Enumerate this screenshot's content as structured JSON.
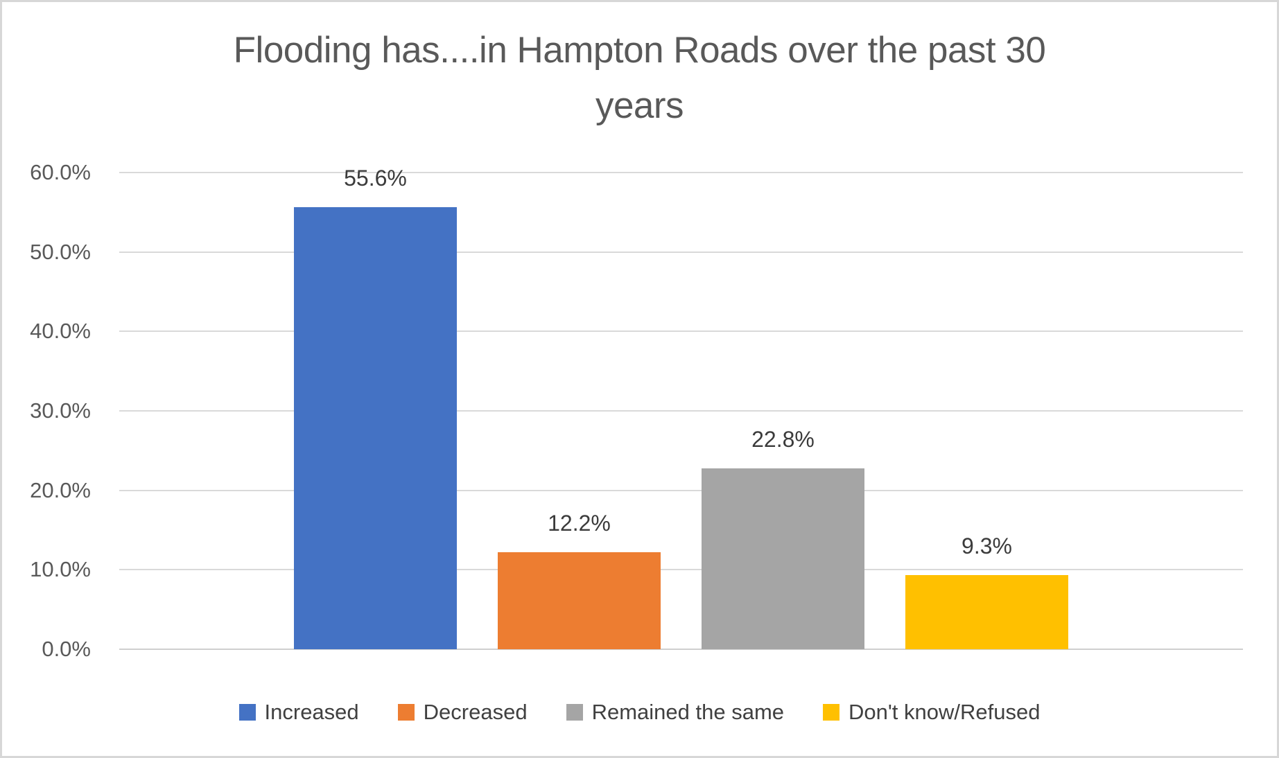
{
  "chart_data": {
    "type": "bar",
    "title": "Flooding has....in Hampton Roads over the past 30 years",
    "title_lines": [
      "Flooding has....in Hampton Roads over the past 30",
      "years"
    ],
    "categories": [
      "Increased",
      "Decreased",
      "Remained the same",
      "Don't know/Refused"
    ],
    "values": [
      55.6,
      12.2,
      22.8,
      9.3
    ],
    "data_labels": [
      "55.6%",
      "12.2%",
      "22.8%",
      "9.3%"
    ],
    "series_colors": [
      "#4472C4",
      "#ED7D31",
      "#A5A5A5",
      "#FFC000"
    ],
    "xlabel": "",
    "ylabel": "",
    "y_axis": {
      "min": 0,
      "max": 60,
      "step": 10,
      "tick_labels": [
        "0.0%",
        "10.0%",
        "20.0%",
        "30.0%",
        "40.0%",
        "50.0%",
        "60.0%"
      ]
    },
    "grid": true,
    "legend_position": "bottom",
    "colors": {
      "title_text": "#595959",
      "tick_text": "#595959",
      "data_label_text": "#3b3b3b",
      "legend_text": "#404040",
      "gridline": "#d9d9d9",
      "frame_border": "#d7d7d7",
      "background": "#ffffff"
    }
  }
}
